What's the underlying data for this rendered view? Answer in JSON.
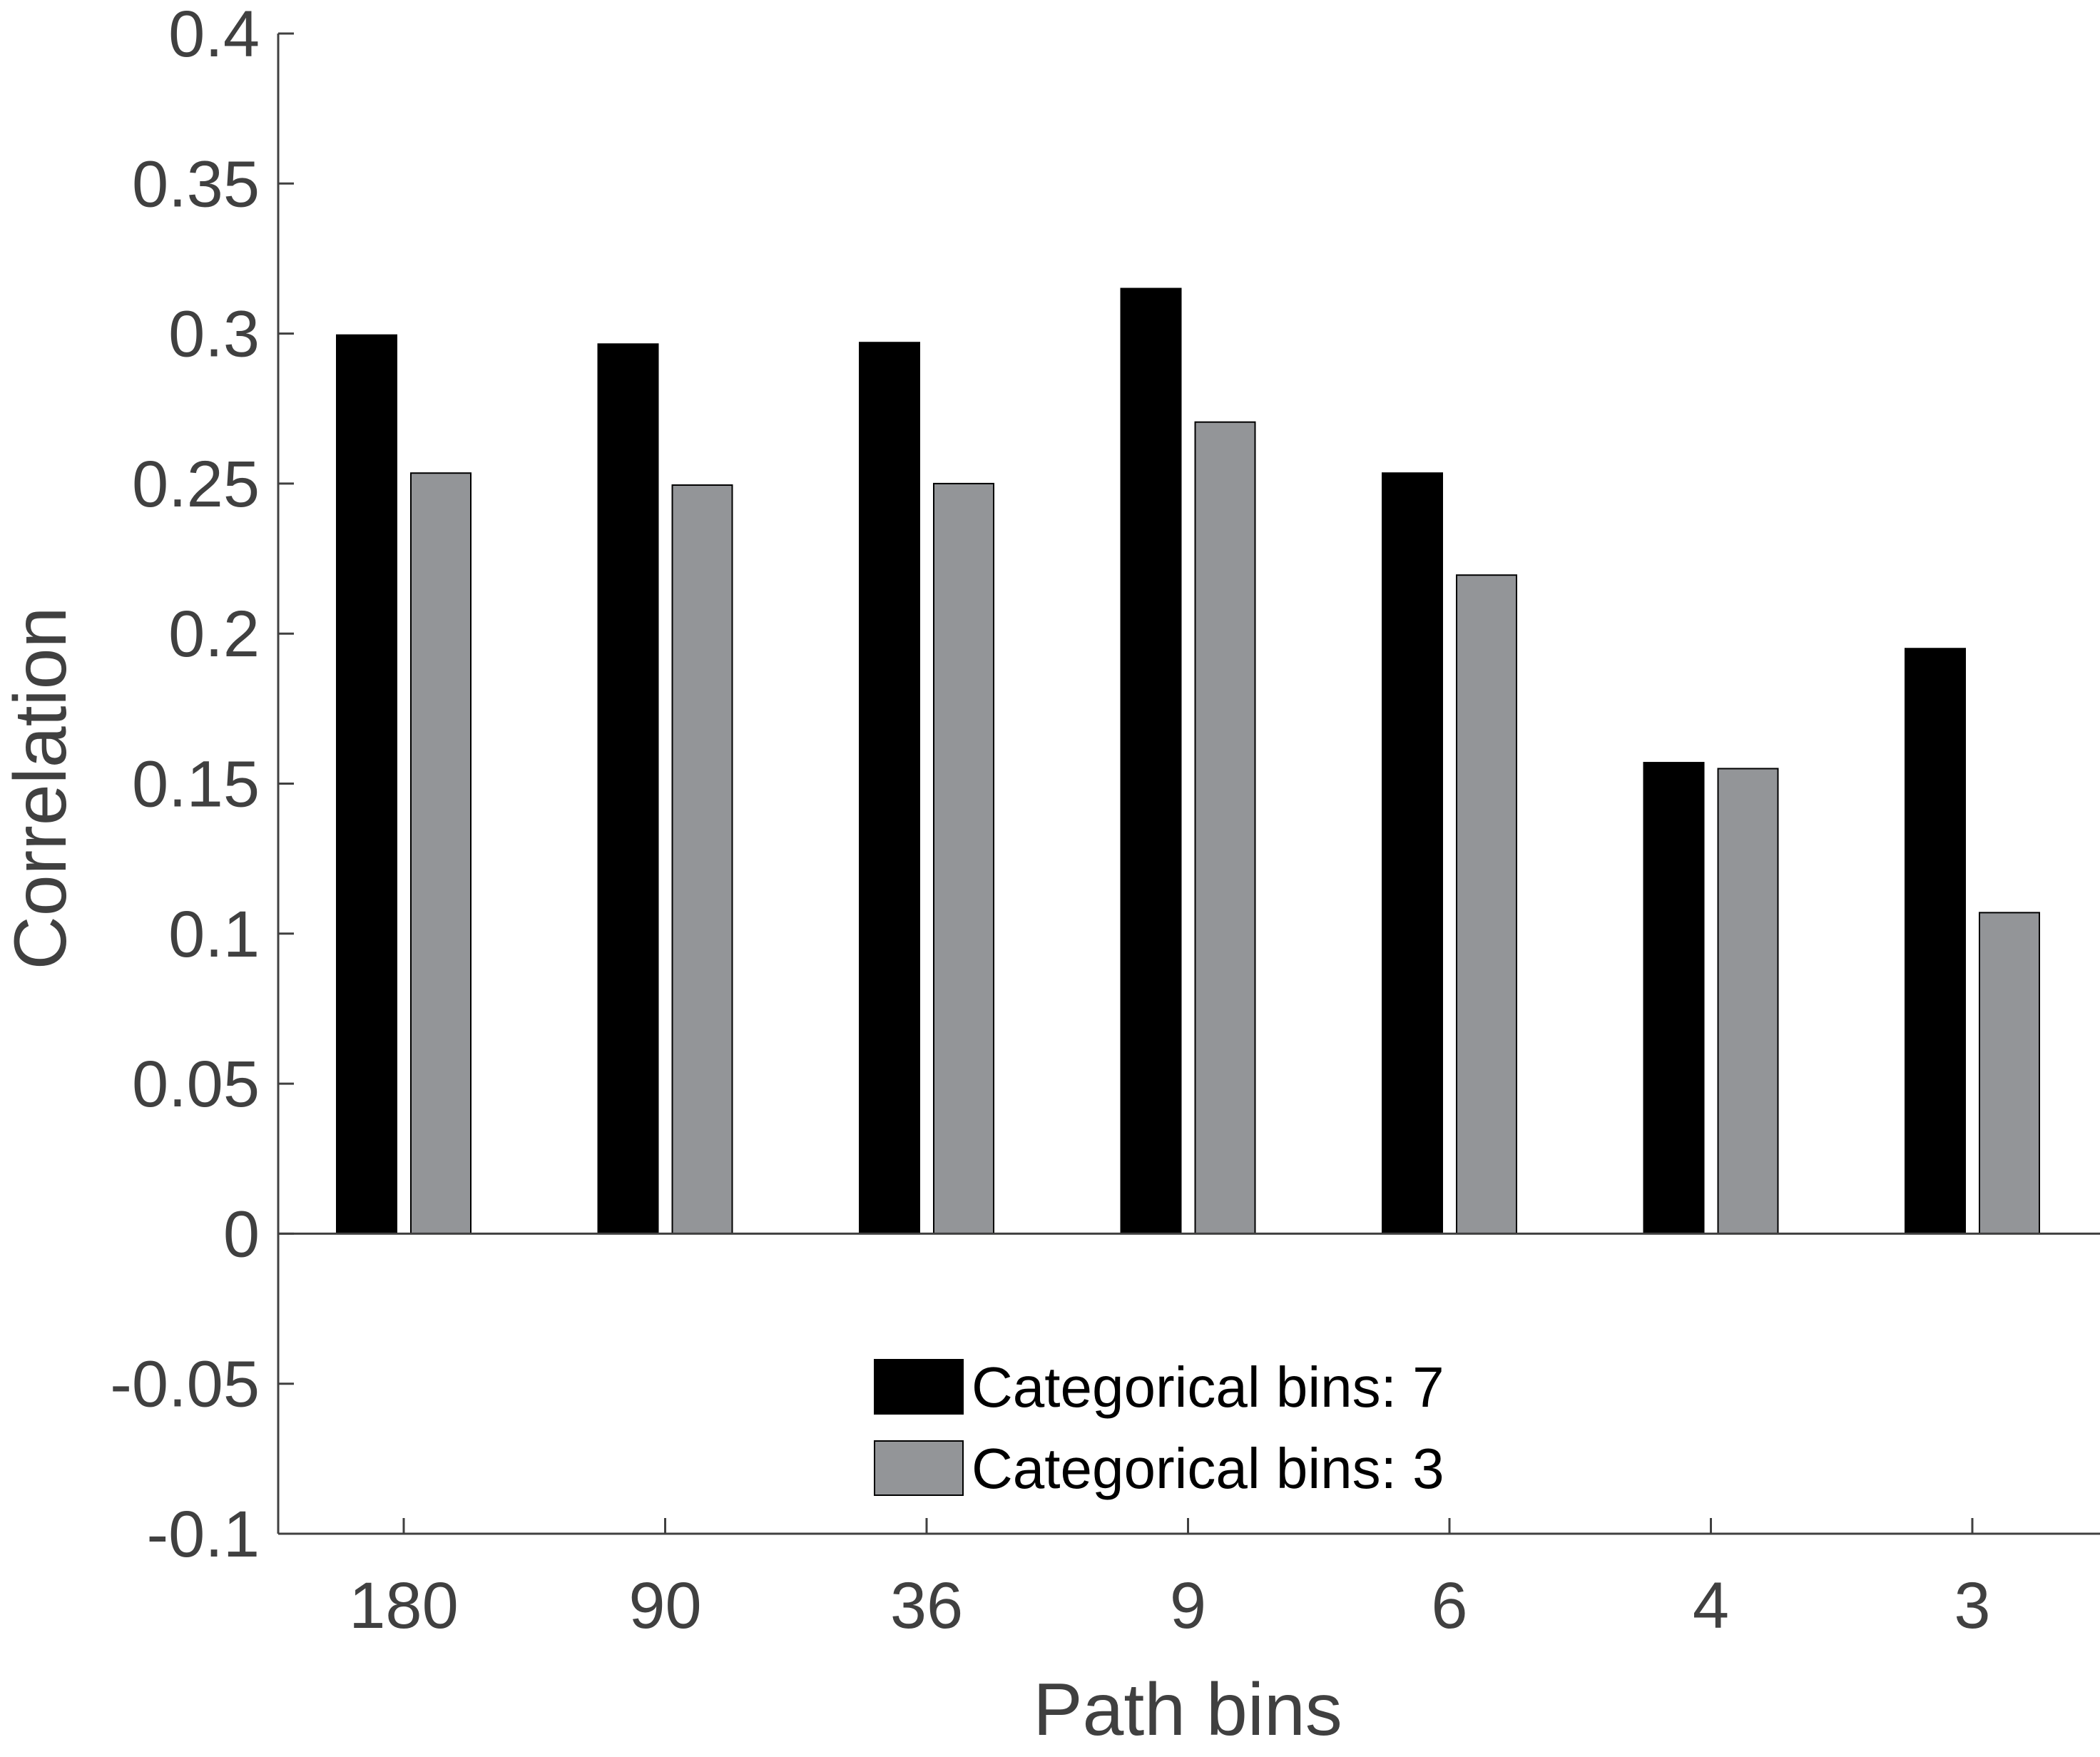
{
  "chart_data": {
    "type": "bar",
    "title": "",
    "xlabel": "Path bins",
    "ylabel": "Correlation",
    "categories": [
      "180",
      "90",
      "36",
      "9",
      "6",
      "4",
      "3"
    ],
    "series": [
      {
        "name": "Categorical bins: 7",
        "color": "#000000",
        "values": [
          0.2995,
          0.2965,
          0.297,
          0.315,
          0.2535,
          0.157,
          0.195
        ]
      },
      {
        "name": "Categorical bins: 3",
        "color": "#939598",
        "values": [
          0.2535,
          0.2495,
          0.25,
          0.2705,
          0.2195,
          0.155,
          0.107
        ]
      }
    ],
    "ylim": [
      -0.1,
      0.4
    ],
    "yticks": [
      "-0.1",
      "-0.05",
      "0",
      "0.05",
      "0.1",
      "0.15",
      "0.2",
      "0.25",
      "0.3",
      "0.35",
      "0.4"
    ],
    "grid": false,
    "legend_position": "bottom-center"
  }
}
